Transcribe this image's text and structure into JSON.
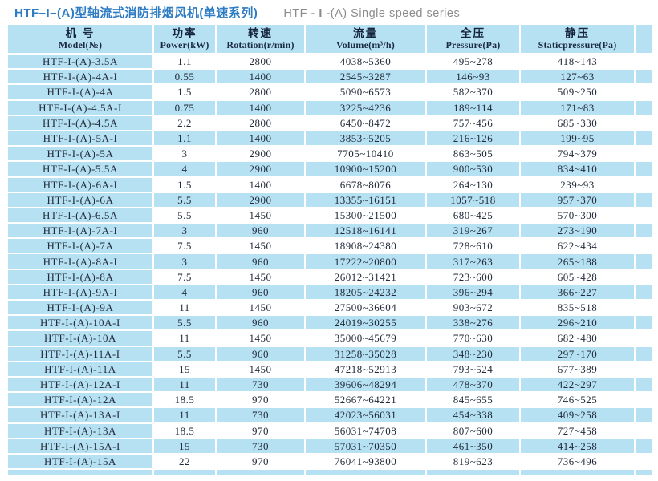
{
  "page": {
    "title_zh": "HTF–I–(A)型轴流式消防排烟风机(单速系列)",
    "title_en_pre": "HTF - ",
    "title_en_mid": "I",
    "title_en_post": " -(A) Single speed series"
  },
  "colors": {
    "row_blue": "#b5e1f2",
    "title_blue": "#2e7cc3",
    "title_gray": "#8c8c8c",
    "table_text": "#232b3a"
  },
  "table": {
    "col_keys": [
      "model",
      "power",
      "rotation",
      "volume",
      "pressure",
      "static_pressure"
    ],
    "headers": [
      {
        "zh": "机 号",
        "en": "Model(№)"
      },
      {
        "zh": "功率",
        "en": "Power(kW)"
      },
      {
        "zh": "转速",
        "en": "Rotation(r/min)"
      },
      {
        "zh": "流量",
        "en": "Volume(m³/h)"
      },
      {
        "zh": "全压",
        "en": "Pressure(Pa)"
      },
      {
        "zh": "静压",
        "en": "Staticpressure(Pa)"
      }
    ],
    "rows": [
      [
        "HTF-I-(A)-3.5A",
        "1.1",
        "2800",
        "4038~5360",
        "495~278",
        "418~143"
      ],
      [
        "HTF-I-(A)-4A-I",
        "0.55",
        "1400",
        "2545~3287",
        "146~93",
        "127~63"
      ],
      [
        "HTF-I-(A)-4A",
        "1.5",
        "2800",
        "5090~6573",
        "582~370",
        "509~250"
      ],
      [
        "HTF-I-(A)-4.5A-I",
        "0.75",
        "1400",
        "3225~4236",
        "189~114",
        "171~83"
      ],
      [
        "HTF-I-(A)-4.5A",
        "2.2",
        "2800",
        "6450~8472",
        "757~456",
        "685~330"
      ],
      [
        "HTF-I-(A)-5A-I",
        "1.1",
        "1400",
        "3853~5205",
        "216~126",
        "199~95"
      ],
      [
        "HTF-I-(A)-5A",
        "3",
        "2900",
        "7705~10410",
        "863~505",
        "794~379"
      ],
      [
        "HTF-I-(A)-5.5A",
        "4",
        "2900",
        "10900~15200",
        "900~530",
        "834~410"
      ],
      [
        "HTF-I-(A)-6A-I",
        "1.5",
        "1400",
        "6678~8076",
        "264~130",
        "239~93"
      ],
      [
        "HTF-I-(A)-6A",
        "5.5",
        "2900",
        "13355~16151",
        "1057~518",
        "957~370"
      ],
      [
        "HTF-I-(A)-6.5A",
        "5.5",
        "1450",
        "15300~21500",
        "680~425",
        "570~300"
      ],
      [
        "HTF-I-(A)-7A-I",
        "3",
        "960",
        "12518~16141",
        "319~267",
        "273~190"
      ],
      [
        "HTF-I-(A)-7A",
        "7.5",
        "1450",
        "18908~24380",
        "728~610",
        "622~434"
      ],
      [
        "HTF-I-(A)-8A-I",
        "3",
        "960",
        "17222~20800",
        "317~263",
        "265~188"
      ],
      [
        "HTF-I-(A)-8A",
        "7.5",
        "1450",
        "26012~31421",
        "723~600",
        "605~428"
      ],
      [
        "HTF-I-(A)-9A-I",
        "4",
        "960",
        "18205~24232",
        "396~294",
        "366~227"
      ],
      [
        "HTF-I-(A)-9A",
        "11",
        "1450",
        "27500~36604",
        "903~672",
        "835~518"
      ],
      [
        "HTF-I-(A)-10A-I",
        "5.5",
        "960",
        "24019~30255",
        "338~276",
        "296~210"
      ],
      [
        "HTF-I-(A)-10A",
        "11",
        "1450",
        "35000~45679",
        "770~630",
        "682~480"
      ],
      [
        "HTF-I-(A)-11A-I",
        "5.5",
        "960",
        "31258~35028",
        "348~230",
        "297~170"
      ],
      [
        "HTF-I-(A)-11A",
        "15",
        "1450",
        "47218~52913",
        "793~524",
        "677~389"
      ],
      [
        "HTF-I-(A)-12A-I",
        "11",
        "730",
        "39606~48294",
        "478~370",
        "422~297"
      ],
      [
        "HTF-I-(A)-12A",
        "18.5",
        "970",
        "52667~64221",
        "845~655",
        "746~525"
      ],
      [
        "HTF-I-(A)-13A-I",
        "11",
        "730",
        "42023~56031",
        "454~338",
        "409~258"
      ],
      [
        "HTF-I-(A)-13A",
        "18.5",
        "970",
        "56031~74708",
        "807~600",
        "727~458"
      ],
      [
        "HTF-I-(A)-15A-I",
        "15",
        "730",
        "57031~70350",
        "461~350",
        "414~258"
      ],
      [
        "HTF-I-(A)-15A",
        "22",
        "970",
        "76041~93800",
        "819~623",
        "736~496"
      ]
    ]
  }
}
